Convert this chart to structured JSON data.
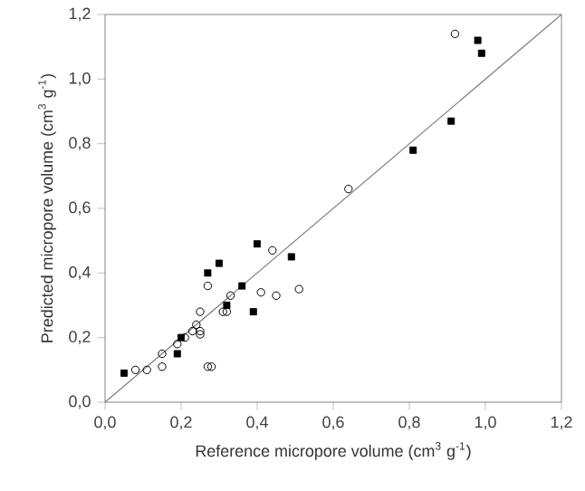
{
  "chart_data": {
    "type": "scatter",
    "xlabel": "Reference micropore volume (cm$^{3}$ g$^{-1}$)",
    "ylabel": "Predicted micropore volume (cm$^{3}$ g$^{-1}$)",
    "xlim": [
      0,
      1.2
    ],
    "ylim": [
      0,
      1.2
    ],
    "xticks": [
      {
        "value": 0,
        "label": "0,0"
      },
      {
        "value": 0.2,
        "label": "0,2"
      },
      {
        "value": 0.4,
        "label": "0,4"
      },
      {
        "value": 0.6,
        "label": "0,6"
      },
      {
        "value": 0.8,
        "label": "0,8"
      },
      {
        "value": 1.0,
        "label": "1,0"
      },
      {
        "value": 1.2,
        "label": "1,2"
      }
    ],
    "yticks": [
      {
        "value": 0,
        "label": "0,0"
      },
      {
        "value": 0.2,
        "label": "0,2"
      },
      {
        "value": 0.4,
        "label": "0,4"
      },
      {
        "value": 0.6,
        "label": "0,6"
      },
      {
        "value": 0.8,
        "label": "0,8"
      },
      {
        "value": 1.0,
        "label": "1,0"
      },
      {
        "value": 1.2,
        "label": "1,2"
      }
    ],
    "series": [
      {
        "type": "line",
        "color": "#808080",
        "marker": "none",
        "x": [
          0,
          1.2
        ],
        "values": [
          0,
          1.2
        ]
      },
      {
        "color": "#000000",
        "marker": "square",
        "x": [
          0.05,
          0.19,
          0.2,
          0.27,
          0.3,
          0.32,
          0.36,
          0.39,
          0.4,
          0.49,
          0.81,
          0.91,
          0.98,
          0.99
        ],
        "values": [
          0.09,
          0.15,
          0.2,
          0.4,
          0.43,
          0.3,
          0.36,
          0.28,
          0.49,
          0.45,
          0.78,
          0.87,
          1.12,
          1.08
        ]
      },
      {
        "color": "#000000",
        "marker": "circle",
        "x": [
          0.08,
          0.11,
          0.15,
          0.15,
          0.19,
          0.21,
          0.23,
          0.24,
          0.25,
          0.25,
          0.25,
          0.27,
          0.27,
          0.28,
          0.31,
          0.32,
          0.33,
          0.41,
          0.44,
          0.45,
          0.51,
          0.64,
          0.92
        ],
        "values": [
          0.1,
          0.1,
          0.15,
          0.11,
          0.18,
          0.2,
          0.22,
          0.24,
          0.22,
          0.21,
          0.28,
          0.36,
          0.11,
          0.11,
          0.28,
          0.28,
          0.33,
          0.34,
          0.47,
          0.33,
          0.35,
          0.66,
          1.14
        ]
      }
    ]
  }
}
